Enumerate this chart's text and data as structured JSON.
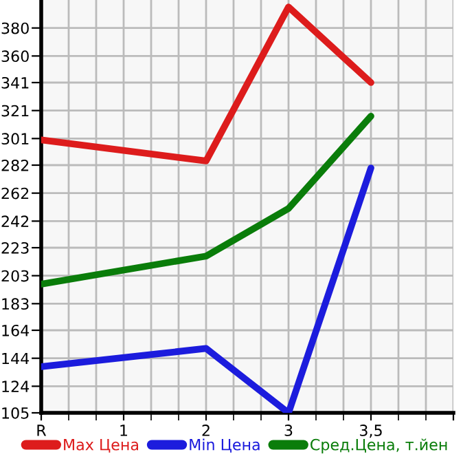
{
  "chart_data": {
    "type": "line",
    "categories": [
      "R",
      "1",
      "2",
      "3",
      "3,5",
      null
    ],
    "series": [
      {
        "name": "Max Цена",
        "color": "#dd1c1c",
        "values": [
          300,
          null,
          285,
          395,
          341,
          null
        ]
      },
      {
        "name": "Min Цена",
        "color": "#1c1cdd",
        "values": [
          138,
          null,
          151,
          105,
          280,
          null
        ]
      },
      {
        "name": "Сред.Цена, т.йен",
        "color": "#0a7d0a",
        "values": [
          197,
          null,
          217,
          251,
          317,
          null
        ]
      }
    ],
    "ylim": [
      105,
      400
    ],
    "yticks": [
      105,
      124,
      144,
      164,
      183,
      203,
      223,
      242,
      262,
      282,
      301,
      321,
      341,
      360,
      380
    ],
    "grid": true,
    "legend": "bottom",
    "marker": "none",
    "line_style": "solid"
  }
}
